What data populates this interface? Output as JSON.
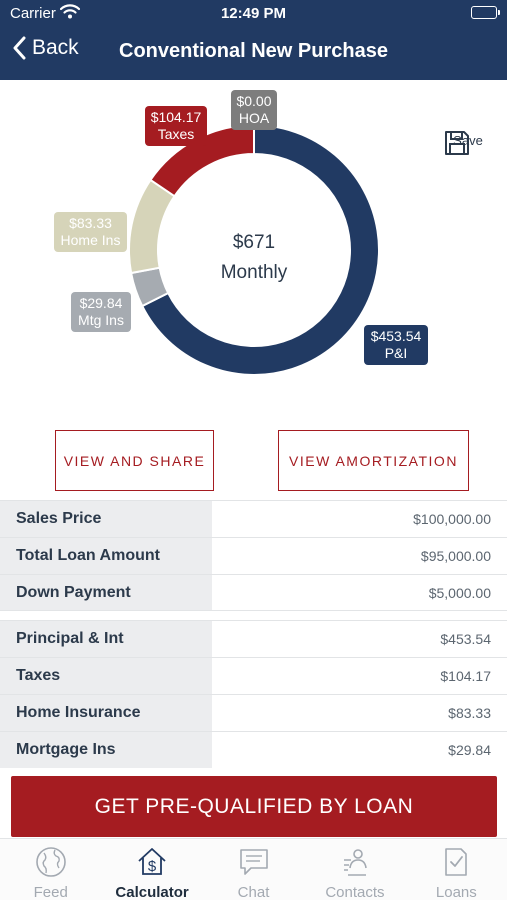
{
  "status_bar": {
    "carrier": "Carrier",
    "time": "12:49 PM"
  },
  "nav": {
    "back_label": "Back",
    "title": "Conventional New Purchase"
  },
  "chart_data": {
    "type": "pie",
    "total_label": "$671",
    "period_label": "Monthly",
    "slices": [
      {
        "name": "P&I",
        "value": 453.54,
        "label": "$453.54",
        "color": "#213a63"
      },
      {
        "name": "Mtg Ins",
        "value": 29.84,
        "label": "$29.84",
        "color": "#a6abb1"
      },
      {
        "name": "Home Ins",
        "value": 83.33,
        "label": "$83.33",
        "color": "#d6d4b9"
      },
      {
        "name": "Taxes",
        "value": 104.17,
        "label": "$104.17",
        "color": "#a51c21"
      },
      {
        "name": "HOA",
        "value": 0,
        "label": "$0.00",
        "color": "#7d7d7d"
      }
    ]
  },
  "save": {
    "label": "Save"
  },
  "buttons": {
    "view_share": "VIEW AND SHARE",
    "view_amortization": "VIEW AMORTIZATION"
  },
  "loan_table": [
    {
      "label": "Sales Price",
      "value": "$100,000.00"
    },
    {
      "label": "Total Loan Amount",
      "value": "$95,000.00"
    },
    {
      "label": "Down Payment",
      "value": "$5,000.00"
    }
  ],
  "payment_table": [
    {
      "label": "Principal & Int",
      "value": "$453.54"
    },
    {
      "label": "Taxes",
      "value": "$104.17"
    },
    {
      "label": "Home Insurance",
      "value": "$83.33"
    },
    {
      "label": "Mortgage Ins",
      "value": "$29.84"
    }
  ],
  "cta": {
    "label": "GET PRE-QUALIFIED BY LOAN"
  },
  "tabs": [
    {
      "label": "Feed",
      "icon": "globe-icon"
    },
    {
      "label": "Calculator",
      "icon": "calculator-house-icon"
    },
    {
      "label": "Chat",
      "icon": "chat-icon"
    },
    {
      "label": "Contacts",
      "icon": "contacts-icon"
    },
    {
      "label": "Loans",
      "icon": "loans-document-icon"
    }
  ],
  "colors": {
    "navy": "#213a63",
    "red": "#a51c21",
    "inactive": "#a3a9b1"
  }
}
